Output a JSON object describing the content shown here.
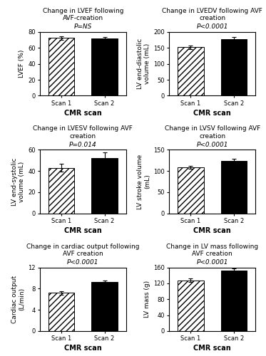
{
  "chart_data": [
    {
      "type": "bar",
      "title": "Change in LVEF following AVF-creation",
      "annotation": "P=NS",
      "xlabel": "CMR scan",
      "ylabel": "LVEF (%)",
      "categories": [
        "Scan 1",
        "Scan 2"
      ],
      "values": [
        72.5,
        71.5
      ],
      "errors": [
        2.0,
        1.8
      ],
      "colors": [
        "#ffffff",
        "#000000"
      ],
      "ylim": [
        0,
        80
      ],
      "yticks": [
        0,
        20,
        40,
        60,
        80
      ]
    },
    {
      "type": "bar",
      "title": "Change in LVEDV following AVF creation",
      "annotation": "P<0.0001",
      "xlabel": "CMR scan",
      "ylabel": "LV end-diastolic volume (mL)",
      "categories": [
        "Scan 1",
        "Scan 2"
      ],
      "values": [
        152,
        177
      ],
      "errors": [
        5.0,
        8.0
      ],
      "colors": [
        "#ffffff",
        "#000000"
      ],
      "ylim": [
        0,
        200
      ],
      "yticks": [
        0,
        50,
        100,
        150,
        200
      ]
    },
    {
      "type": "bar",
      "title": "Change in LVESV following AVF creation",
      "annotation": "P=0.014",
      "xlabel": "CMR scan",
      "ylabel": "LV end-systolic volume (mL)",
      "categories": [
        "Scan 1",
        "Scan 2"
      ],
      "values": [
        43,
        52
      ],
      "errors": [
        3.5,
        5.5
      ],
      "colors": [
        "#ffffff",
        "#000000"
      ],
      "ylim": [
        0,
        60
      ],
      "yticks": [
        0,
        20,
        40,
        60
      ]
    },
    {
      "type": "bar",
      "title": "Change in LVSV following AVF creation",
      "annotation": "P<0.0001",
      "xlabel": "CMR scan",
      "ylabel": "LV stroke volume (mL)",
      "categories": [
        "Scan 1",
        "Scan 2"
      ],
      "values": [
        109,
        124
      ],
      "errors": [
        3.0,
        4.5
      ],
      "colors": [
        "#ffffff",
        "#000000"
      ],
      "ylim": [
        0,
        150
      ],
      "yticks": [
        0,
        50,
        100,
        150
      ]
    },
    {
      "type": "bar",
      "title": "Change in cardiac output following AVF creation",
      "annotation": "P<0.0001",
      "xlabel": "CMR scan",
      "ylabel": "Cardiac output (L/min)",
      "categories": [
        "Scan 1",
        "Scan 2"
      ],
      "values": [
        7.2,
        9.2
      ],
      "errors": [
        0.3,
        0.4
      ],
      "colors": [
        "#ffffff",
        "#000000"
      ],
      "ylim": [
        0,
        12
      ],
      "yticks": [
        0,
        4,
        8,
        12
      ]
    },
    {
      "type": "bar",
      "title": "Change in LV mass following AVF creation",
      "annotation": "P<0.0001",
      "xlabel": "CMR scan",
      "ylabel": "LV mass (g)",
      "categories": [
        "Scan 1",
        "Scan 2"
      ],
      "values": [
        128,
        152
      ],
      "errors": [
        5.0,
        6.0
      ],
      "colors": [
        "#ffffff",
        "#000000"
      ],
      "ylim": [
        0,
        160
      ],
      "yticks": [
        0,
        40,
        80,
        120,
        160
      ]
    }
  ]
}
